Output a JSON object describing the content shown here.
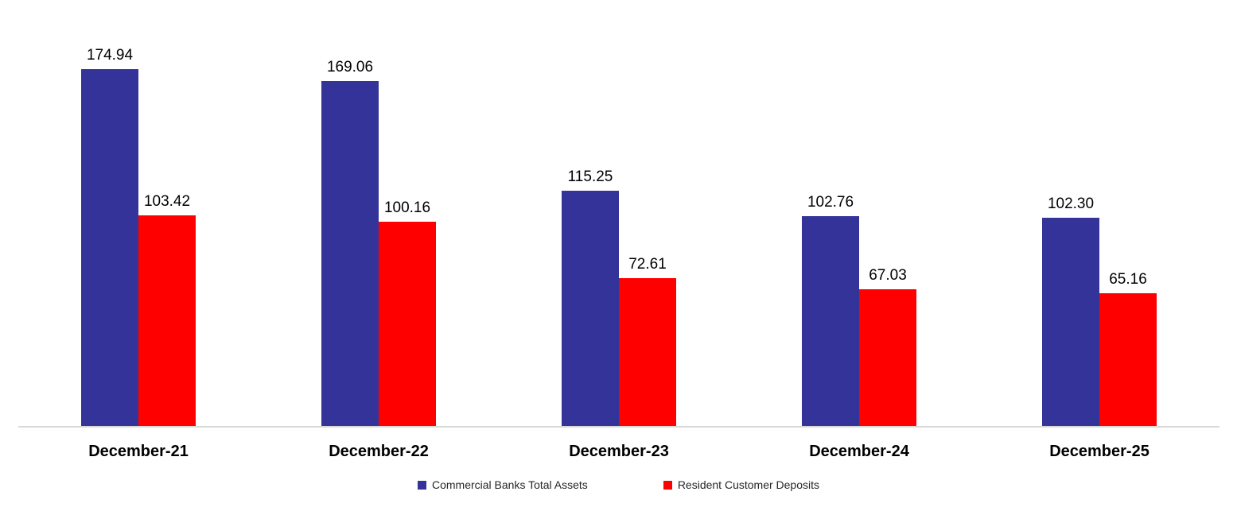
{
  "chart_data": {
    "type": "bar",
    "title": "",
    "xlabel": "",
    "ylabel": "",
    "categories": [
      "December-21",
      "December-22",
      "December-23",
      "December-24",
      "December-25"
    ],
    "series": [
      {
        "name": "Commercial Banks Total Assets",
        "color": "#333399",
        "values": [
          174.94,
          169.06,
          115.25,
          102.76,
          102.3
        ]
      },
      {
        "name": "Resident Customer Deposits",
        "color": "#FF0000",
        "values": [
          103.42,
          100.16,
          72.61,
          67.03,
          65.16
        ]
      }
    ],
    "data_labels": true,
    "data_label_decimals": 2,
    "ylim": [
      0,
      200
    ],
    "grid": false,
    "y_axis_visible": false,
    "x_axis_line_color": "#D9D9D9",
    "legend_position": "bottom"
  }
}
